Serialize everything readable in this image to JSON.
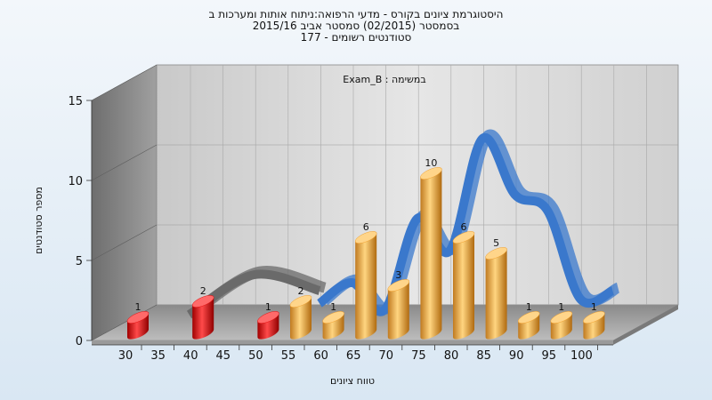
{
  "chart_data": {
    "type": "bar",
    "title_lines": [
      "היסטוגרמת ציונים בקורס - מדעי הרפואה:ניתוח אותות ומערכות ב",
      "בסמסטר  (02/2015)  סמסטר אביב 2015/16",
      "סטודנטים רשומים - 177"
    ],
    "inner_title": "במשימה : Exam_B",
    "xlabel": "טווח ציונים",
    "ylabel": "מספר סטודנטים",
    "x_ticks": [
      30,
      35,
      40,
      45,
      50,
      55,
      60,
      65,
      70,
      75,
      80,
      85,
      90,
      95,
      100
    ],
    "y_ticks": [
      0,
      5,
      10,
      15
    ],
    "ylim": [
      0,
      15
    ],
    "grid": true,
    "bars": [
      {
        "x": 30,
        "value": 1,
        "label": "1",
        "color": "#e01010"
      },
      {
        "x": 40,
        "value": 2,
        "label": "2",
        "color": "#e01010"
      },
      {
        "x": 50,
        "value": 1,
        "label": "1",
        "color": "#e01010"
      },
      {
        "x": 55,
        "value": 2,
        "label": "2",
        "color": "#f0a030"
      },
      {
        "x": 60,
        "value": 1,
        "label": "1",
        "color": "#f0a030"
      },
      {
        "x": 65,
        "value": 6,
        "label": "6",
        "color": "#f0a030"
      },
      {
        "x": 70,
        "value": 3,
        "label": "3",
        "color": "#f0a030"
      },
      {
        "x": 75,
        "value": 10,
        "label": "10",
        "color": "#f0a030"
      },
      {
        "x": 80,
        "value": 6,
        "label": "6",
        "color": "#f0a030"
      },
      {
        "x": 85,
        "value": 5,
        "label": "5",
        "color": "#f0a030"
      },
      {
        "x": 90,
        "value": 1,
        "label": "1",
        "color": "#f0a030"
      },
      {
        "x": 95,
        "value": 1,
        "label": "1",
        "color": "#f0a030"
      },
      {
        "x": 100,
        "value": 1,
        "label": "1",
        "color": "#f0a030"
      }
    ],
    "curves": [
      {
        "color": "#3a78cc",
        "points": [
          [
            55,
            1.2
          ],
          [
            60,
            2.5
          ],
          [
            65,
            0.8
          ],
          [
            70,
            6.5
          ],
          [
            75,
            4.5
          ],
          [
            80,
            11.5
          ],
          [
            85,
            8
          ],
          [
            90,
            7
          ],
          [
            95,
            1.5
          ],
          [
            100,
            2
          ]
        ]
      },
      {
        "color": "#6a6a6a",
        "points": [
          [
            35,
            0.5
          ],
          [
            45,
            3
          ],
          [
            55,
            2
          ]
        ]
      }
    ]
  }
}
